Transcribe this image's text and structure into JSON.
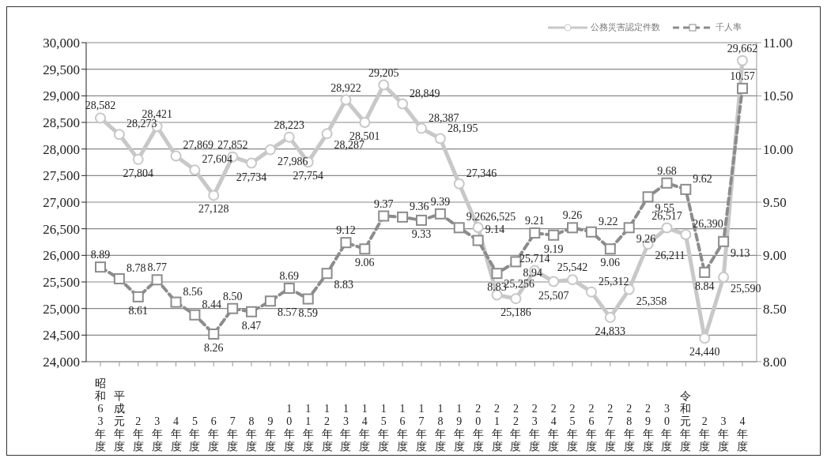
{
  "chart_data": {
    "type": "line",
    "categories": [
      "昭和63年度",
      "平成元年度",
      "2年度",
      "3年度",
      "4年度",
      "5年度",
      "6年度",
      "7年度",
      "8年度",
      "9年度",
      "10年度",
      "11年度",
      "12年度",
      "13年度",
      "14年度",
      "15年度",
      "16年度",
      "17年度",
      "18年度",
      "19年度",
      "20年度",
      "21年度",
      "22年度",
      "23年度",
      "24年度",
      "25年度",
      "26年度",
      "27年度",
      "28年度",
      "29年度",
      "30年度",
      "令和元年度",
      "2年度",
      "3年度",
      "4年度"
    ],
    "series": [
      {
        "name": "公務災害認定件数",
        "color": "#c8c8c8",
        "marker": "circle",
        "line_style": "solid",
        "values": [
          28582,
          28273,
          27804,
          28421,
          27869,
          27604,
          27128,
          27852,
          27734,
          27986,
          28223,
          27754,
          28287,
          28922,
          28501,
          29205,
          28849,
          28387,
          28195,
          27346,
          26525,
          25256,
          25186,
          25714,
          25507,
          25542,
          25312,
          24833,
          25358,
          26211,
          26517,
          26390,
          24440,
          25590,
          29662
        ],
        "value_labels": [
          "28,582",
          "28,273",
          "27,804",
          "28,421",
          "27,869",
          "27,604",
          "27,128",
          "27,852",
          "27,734",
          "27,986",
          "28,223",
          "27,754",
          "28,287",
          "28,922",
          "28,501",
          "29,205",
          "28,849",
          "28,387",
          "28,195",
          "27,346",
          "26,525",
          "25,256",
          "25,186",
          "25,714",
          "25,507",
          "25,542",
          "25,312",
          "24,833",
          "25,358",
          "26,211",
          "26,517",
          "26,390",
          "24,440",
          "25,590",
          "29,662"
        ]
      },
      {
        "name": "千人率",
        "color": "#8c8c8c",
        "marker": "square",
        "line_style": "dashed",
        "axis": "y2",
        "values": [
          8.89,
          8.78,
          8.61,
          8.77,
          8.56,
          8.44,
          8.26,
          8.5,
          8.47,
          8.57,
          8.69,
          8.59,
          8.83,
          9.12,
          9.06,
          9.37,
          9.36,
          9.33,
          9.39,
          9.26,
          9.14,
          8.83,
          8.94,
          9.21,
          9.19,
          9.26,
          9.22,
          9.06,
          9.26,
          9.55,
          9.68,
          9.62,
          8.84,
          9.13,
          10.57
        ],
        "value_labels": [
          "8.89",
          "8.78",
          "8.61",
          "8.77",
          "8.56",
          "8.44",
          "8.26",
          "8.50",
          "8.47",
          "8.57",
          "8.69",
          "8.59",
          "8.83",
          "9.12",
          "9.06",
          "9.37",
          "9.36",
          "9.33",
          "9.39",
          "9.26",
          "9.14",
          "8.83",
          "8.94",
          "9.21",
          "9.19",
          "9.26",
          "9.22",
          "9.06",
          "9.26",
          "9.55",
          "9.68",
          "9.62",
          "8.84",
          "9.13",
          "10.57"
        ]
      }
    ],
    "ylim": [
      24000,
      30000
    ],
    "yticks": [
      {
        "value": 24000,
        "label": "24,000"
      },
      {
        "value": 24500,
        "label": "24,500"
      },
      {
        "value": 25000,
        "label": "25,000"
      },
      {
        "value": 25500,
        "label": "25,500"
      },
      {
        "value": 26000,
        "label": "26,000"
      },
      {
        "value": 26500,
        "label": "26,500"
      },
      {
        "value": 27000,
        "label": "27,000"
      },
      {
        "value": 27500,
        "label": "27,500"
      },
      {
        "value": 28000,
        "label": "28,000"
      },
      {
        "value": 28500,
        "label": "28,500"
      },
      {
        "value": 29000,
        "label": "29,000"
      },
      {
        "value": 29500,
        "label": "29,500"
      },
      {
        "value": 30000,
        "label": "30,000"
      }
    ],
    "y2lim": [
      8,
      11
    ],
    "y2ticks": [
      {
        "value": 8,
        "label": "8.00"
      },
      {
        "value": 8.5,
        "label": "8.50"
      },
      {
        "value": 9,
        "label": "9.00"
      },
      {
        "value": 9.5,
        "label": "9.50"
      },
      {
        "value": 10,
        "label": "10.00"
      },
      {
        "value": 10.5,
        "label": "10.50"
      },
      {
        "value": 11,
        "label": "11.00"
      }
    ],
    "grid": "y",
    "legend": "top right"
  }
}
